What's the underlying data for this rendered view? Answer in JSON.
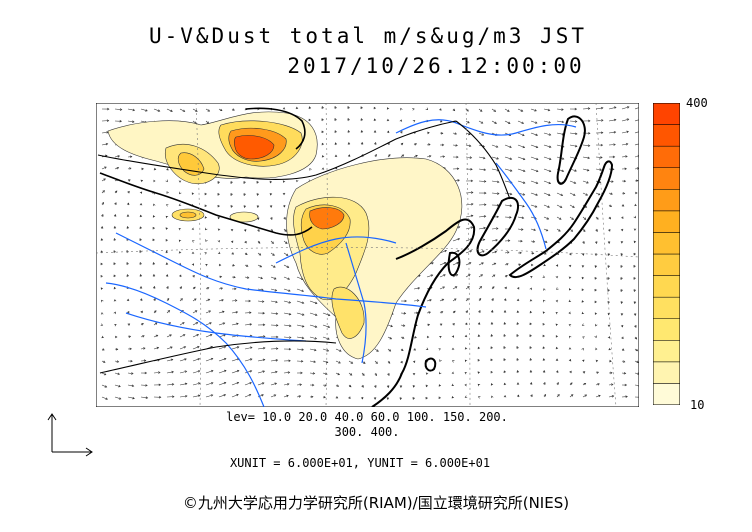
{
  "header": {
    "title_line1": "U-V&Dust total m/s&ug/m3 JST",
    "title_line2": "2017/10/26.12:00:00"
  },
  "colorbar": {
    "max_label": "400",
    "min_label": "10",
    "colors": [
      "#fffbd8",
      "#fff4b0",
      "#fff090",
      "#ffe870",
      "#ffe060",
      "#ffd850",
      "#ffcc40",
      "#ffc030",
      "#ffb020",
      "#ff9c18",
      "#ff8410",
      "#ff6c08",
      "#ff5600",
      "#ff4400"
    ]
  },
  "legend": {
    "levels_line1": "lev= 10.0 20.0 40.0 60.0 100. 150. 200.",
    "levels_line2": "300. 400.",
    "units": "XUNIT = 6.000E+01, YUNIT = 6.000E+01"
  },
  "footer": {
    "copyright": "©九州大学応用力学研究所(RIAM)/国立環境研究所(NIES)"
  },
  "map": {
    "land_color": "#ffffff",
    "coast_color": "#000000",
    "river_color": "#1a66ff",
    "vector_color": "#333333"
  }
}
